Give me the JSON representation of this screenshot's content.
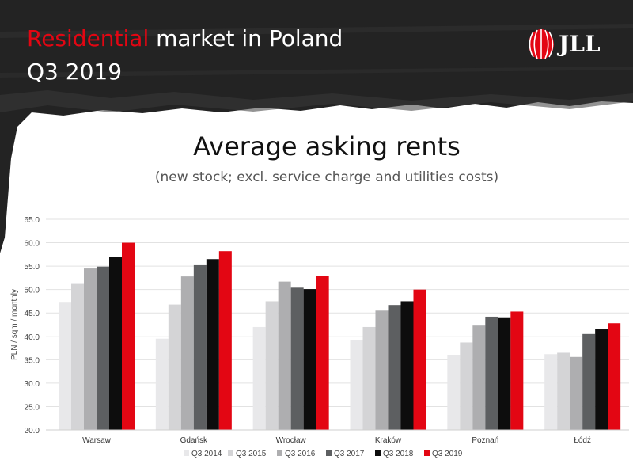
{
  "header": {
    "title_accent": "Residential",
    "title_rest": " market in Poland",
    "period": "Q3 2019",
    "logo_text": "JLL"
  },
  "colors": {
    "accent": "#e30613",
    "header_bg": "#222222"
  },
  "chart_data": {
    "type": "bar",
    "title": "Average asking rents",
    "subtitle": "(new stock; excl. service charge and utilities costs)",
    "xlabel": "",
    "ylabel": "PLN / sqm / monthly",
    "ylim": [
      20,
      65
    ],
    "yticks": [
      "20.0",
      "25.0",
      "30.0",
      "35.0",
      "40.0",
      "45.0",
      "50.0",
      "55.0",
      "60.0",
      "65.0"
    ],
    "grid": true,
    "legend": "bottom",
    "categories": [
      "Warsaw",
      "Gdańsk",
      "Wrocław",
      "Kraków",
      "Poznań",
      "Łódź"
    ],
    "series": [
      {
        "name": "Q3 2014",
        "color": "#e8e8ea",
        "values": [
          47.2,
          39.5,
          42.0,
          39.2,
          36.0,
          36.2
        ]
      },
      {
        "name": "Q3 2015",
        "color": "#d4d4d6",
        "values": [
          51.2,
          46.8,
          47.5,
          42.0,
          38.7,
          36.5
        ]
      },
      {
        "name": "Q3 2016",
        "color": "#aeaeb0",
        "values": [
          54.5,
          52.8,
          51.7,
          45.5,
          42.3,
          35.6
        ]
      },
      {
        "name": "Q3 2017",
        "color": "#5d5f61",
        "values": [
          54.9,
          55.2,
          50.4,
          46.7,
          44.2,
          40.5
        ]
      },
      {
        "name": "Q3 2018",
        "color": "#0d0d0d",
        "values": [
          57.0,
          56.5,
          50.1,
          47.5,
          43.9,
          41.6
        ]
      },
      {
        "name": "Q3 2019",
        "color": "#e30613",
        "values": [
          60.0,
          58.2,
          52.9,
          50.0,
          45.3,
          42.8
        ]
      }
    ]
  }
}
